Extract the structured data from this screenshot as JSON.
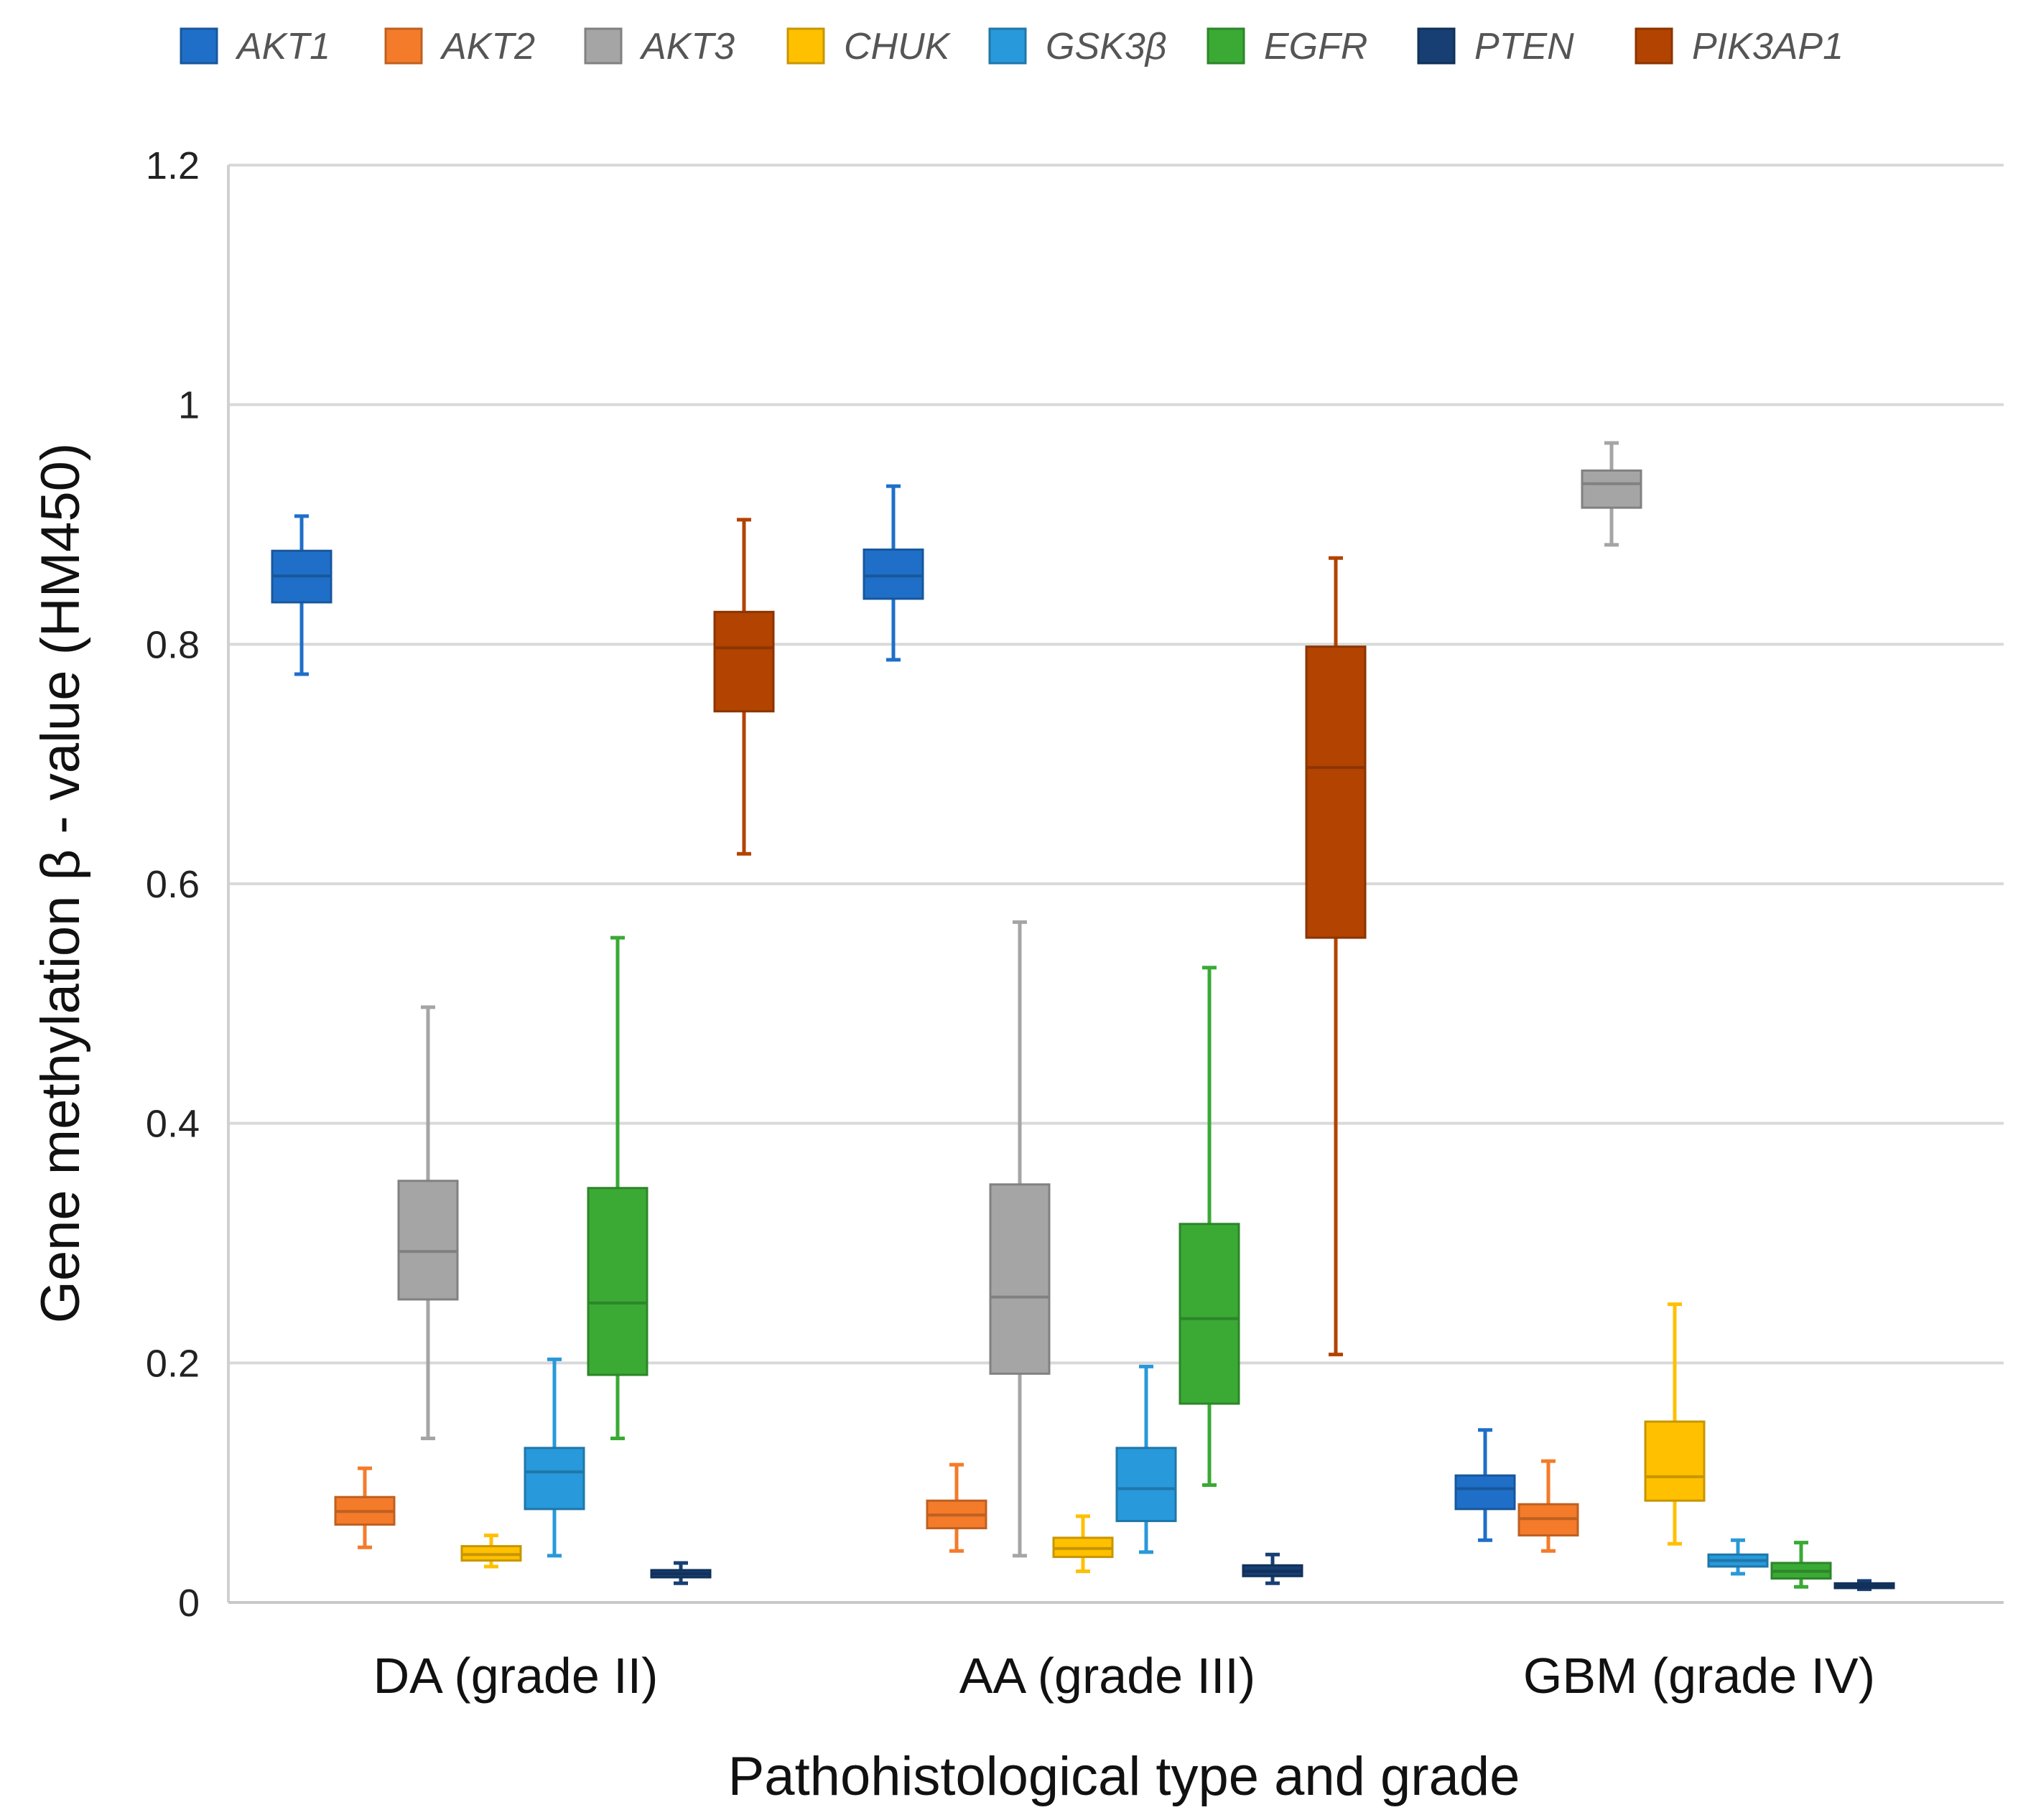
{
  "chart_data": {
    "type": "boxplot",
    "title": "",
    "xlabel": "Pathohistological type and grade",
    "ylabel": "Gene methylation β - value (HM450)",
    "ylim": [
      0,
      1.2
    ],
    "yticks": [
      0,
      0.2,
      0.4,
      0.6,
      0.8,
      1,
      1.2
    ],
    "ytick_labels": [
      "0",
      "0.2",
      "0.4",
      "0.6",
      "0.8",
      "1",
      "1.2"
    ],
    "grid": true,
    "legend_position": "top",
    "categories": [
      "DA (grade II)",
      "AA (grade III)",
      "GBM (grade IV)"
    ],
    "series": [
      {
        "name": "AKT1",
        "color": "#1F6FC8",
        "boxes": [
          {
            "min": 0.775,
            "q1": 0.835,
            "median": 0.857,
            "q3": 0.878,
            "max": 0.907
          },
          {
            "min": 0.787,
            "q1": 0.838,
            "median": 0.857,
            "q3": 0.879,
            "max": 0.932
          },
          {
            "min": 0.052,
            "q1": 0.078,
            "median": 0.095,
            "q3": 0.106,
            "max": 0.144
          }
        ]
      },
      {
        "name": "AKT2",
        "color": "#F47B2A",
        "boxes": [
          {
            "min": 0.046,
            "q1": 0.065,
            "median": 0.076,
            "q3": 0.088,
            "max": 0.112
          },
          {
            "min": 0.043,
            "q1": 0.062,
            "median": 0.073,
            "q3": 0.085,
            "max": 0.115
          },
          {
            "min": 0.043,
            "q1": 0.056,
            "median": 0.07,
            "q3": 0.082,
            "max": 0.118
          }
        ]
      },
      {
        "name": "AKT3",
        "color": "#A5A5A5",
        "boxes": [
          {
            "min": 0.137,
            "q1": 0.253,
            "median": 0.293,
            "q3": 0.352,
            "max": 0.497
          },
          {
            "min": 0.039,
            "q1": 0.191,
            "median": 0.255,
            "q3": 0.349,
            "max": 0.568
          },
          {
            "min": 0.883,
            "q1": 0.914,
            "median": 0.934,
            "q3": 0.945,
            "max": 0.968
          }
        ]
      },
      {
        "name": "CHUK",
        "color": "#FFC000",
        "boxes": [
          {
            "min": 0.03,
            "q1": 0.035,
            "median": 0.04,
            "q3": 0.047,
            "max": 0.056
          },
          {
            "min": 0.026,
            "q1": 0.038,
            "median": 0.045,
            "q3": 0.054,
            "max": 0.072
          },
          {
            "min": 0.049,
            "q1": 0.085,
            "median": 0.105,
            "q3": 0.151,
            "max": 0.249
          }
        ]
      },
      {
        "name": "GSK3β",
        "color": "#2899DA",
        "boxes": [
          {
            "min": 0.039,
            "q1": 0.078,
            "median": 0.109,
            "q3": 0.129,
            "max": 0.203
          },
          {
            "min": 0.042,
            "q1": 0.068,
            "median": 0.095,
            "q3": 0.129,
            "max": 0.197
          },
          {
            "min": 0.024,
            "q1": 0.03,
            "median": 0.035,
            "q3": 0.04,
            "max": 0.052
          }
        ]
      },
      {
        "name": "EGFR",
        "color": "#3AAA35",
        "boxes": [
          {
            "min": 0.137,
            "q1": 0.19,
            "median": 0.25,
            "q3": 0.346,
            "max": 0.555
          },
          {
            "min": 0.098,
            "q1": 0.166,
            "median": 0.237,
            "q3": 0.316,
            "max": 0.53
          },
          {
            "min": 0.013,
            "q1": 0.02,
            "median": 0.026,
            "q3": 0.033,
            "max": 0.05
          }
        ]
      },
      {
        "name": "PTEN",
        "color": "#173F73",
        "boxes": [
          {
            "min": 0.016,
            "q1": 0.021,
            "median": 0.024,
            "q3": 0.027,
            "max": 0.033
          },
          {
            "min": 0.016,
            "q1": 0.022,
            "median": 0.026,
            "q3": 0.031,
            "max": 0.04
          },
          {
            "min": 0.011,
            "q1": 0.012,
            "median": 0.014,
            "q3": 0.016,
            "max": 0.018
          }
        ]
      },
      {
        "name": "PIK3AP1",
        "color": "#B24300",
        "boxes": [
          {
            "min": 0.625,
            "q1": 0.744,
            "median": 0.797,
            "q3": 0.827,
            "max": 0.904
          },
          {
            "min": 0.207,
            "q1": 0.555,
            "median": 0.697,
            "q3": 0.798,
            "max": 0.872
          },
          null
        ]
      }
    ]
  }
}
